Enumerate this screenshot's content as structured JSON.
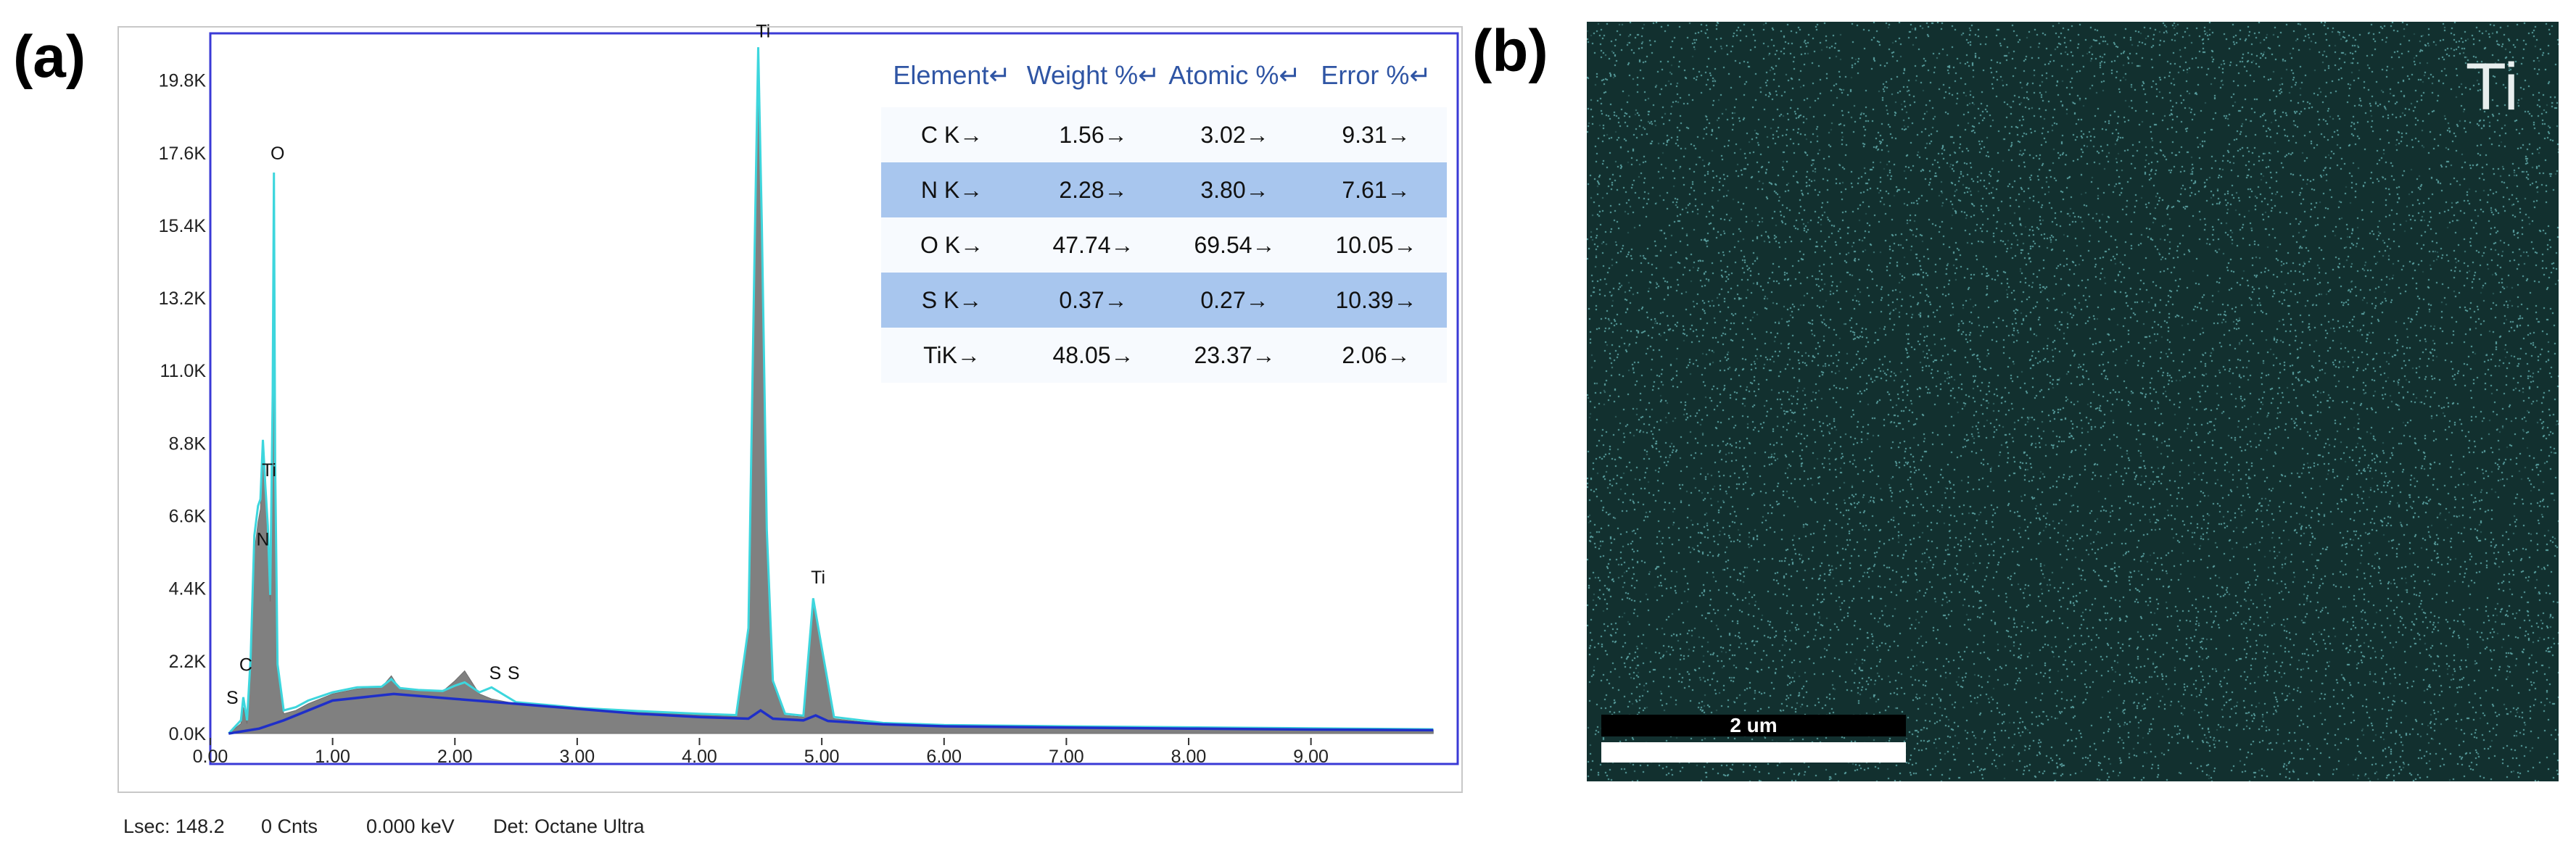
{
  "panels": {
    "a": "(a)",
    "b": "(b)"
  },
  "chart_data": {
    "type": "line",
    "title": "",
    "xlabel": "",
    "ylabel": "",
    "xlim": [
      0,
      10.2
    ],
    "ylim": [
      0,
      21000
    ],
    "x_ticks": [
      "0.00",
      "1.00",
      "2.00",
      "3.00",
      "4.00",
      "5.00",
      "6.00",
      "7.00",
      "8.00",
      "9.00"
    ],
    "x_tick_values": [
      0,
      1,
      2,
      3,
      4,
      5,
      6,
      7,
      8,
      9
    ],
    "y_ticks": [
      "0.0K",
      "2.2K",
      "4.4K",
      "6.6K",
      "8.8K",
      "11.0K",
      "13.2K",
      "15.4K",
      "17.6K",
      "19.8K"
    ],
    "y_tick_values": [
      0,
      2200,
      4400,
      6600,
      8800,
      11000,
      13200,
      15400,
      17600,
      19800
    ],
    "series": [
      {
        "color": "#808080",
        "x": [
          0.15,
          0.25,
          0.27,
          0.3,
          0.33,
          0.36,
          0.39,
          0.41,
          0.43,
          0.45,
          0.47,
          0.49,
          0.51,
          0.52,
          0.53,
          0.55,
          0.6,
          0.7,
          0.8,
          1.0,
          1.2,
          1.4,
          1.48,
          1.55,
          1.7,
          1.9,
          2.0,
          2.08,
          2.2,
          2.3,
          2.5,
          2.8,
          3.0,
          3.5,
          4.0,
          4.3,
          4.4,
          4.45,
          4.48,
          4.51,
          4.55,
          4.6,
          4.7,
          4.85,
          4.93,
          5.0,
          5.1,
          5.5,
          6.0,
          7.0,
          8.0,
          9.0,
          10.0
        ],
        "y": [
          0,
          300,
          800,
          300,
          2000,
          5500,
          6400,
          6800,
          8600,
          7200,
          6000,
          4000,
          10000,
          17000,
          8000,
          2000,
          600,
          700,
          900,
          1200,
          1350,
          1400,
          1750,
          1350,
          1300,
          1280,
          1600,
          1900,
          1200,
          1050,
          900,
          800,
          750,
          650,
          560,
          520,
          3000,
          14000,
          20500,
          15000,
          6000,
          1500,
          550,
          500,
          4000,
          2500,
          450,
          280,
          220,
          190,
          160,
          130,
          110
        ]
      },
      {
        "color": "#3dd6dd",
        "x": [
          0.15,
          0.25,
          0.27,
          0.3,
          0.33,
          0.36,
          0.39,
          0.41,
          0.43,
          0.45,
          0.47,
          0.49,
          0.51,
          0.52,
          0.53,
          0.55,
          0.6,
          0.7,
          0.8,
          1.0,
          1.2,
          1.4,
          1.48,
          1.55,
          1.7,
          1.9,
          2.0,
          2.08,
          2.2,
          2.3,
          2.5,
          2.8,
          3.0,
          3.5,
          4.0,
          4.3,
          4.4,
          4.45,
          4.48,
          4.51,
          4.55,
          4.6,
          4.7,
          4.85,
          4.93,
          5.0,
          5.1,
          5.5,
          6.0,
          7.0,
          8.0,
          9.0,
          10.0
        ],
        "y": [
          0,
          400,
          1100,
          400,
          2300,
          6000,
          6900,
          7100,
          8900,
          7500,
          6300,
          4200,
          10300,
          17000,
          8200,
          2100,
          700,
          800,
          1000,
          1250,
          1400,
          1420,
          1650,
          1380,
          1320,
          1290,
          1450,
          1550,
          1250,
          1400,
          950,
          850,
          780,
          680,
          600,
          560,
          3200,
          14500,
          20800,
          15400,
          6200,
          1600,
          600,
          540,
          4100,
          2600,
          500,
          320,
          260,
          220,
          190,
          160,
          130
        ]
      },
      {
        "color": "#1f2fc8",
        "x": [
          0.15,
          0.4,
          0.6,
          1.0,
          1.5,
          2.0,
          2.5,
          3.0,
          3.5,
          4.0,
          4.4,
          4.5,
          4.6,
          4.85,
          4.95,
          5.05,
          5.5,
          6.0,
          7.0,
          8.0,
          9.0,
          10.0
        ],
        "y": [
          0,
          150,
          400,
          1000,
          1200,
          1050,
          900,
          750,
          600,
          500,
          450,
          700,
          450,
          400,
          550,
          380,
          280,
          220,
          180,
          150,
          120,
          100
        ]
      }
    ],
    "peak_labels": [
      {
        "text": "S",
        "x": 0.18,
        "y": 900
      },
      {
        "text": "C",
        "x": 0.29,
        "y": 1900
      },
      {
        "text": "O",
        "x": 0.55,
        "y": 17400
      },
      {
        "text": "Ti",
        "x": 0.48,
        "y": 7800
      },
      {
        "text": "N",
        "x": 0.43,
        "y": 5700
      },
      {
        "text": "Ti",
        "x": 4.52,
        "y": 21100
      },
      {
        "text": "Ti",
        "x": 4.97,
        "y": 4550
      },
      {
        "text": "S",
        "x": 2.33,
        "y": 1650
      },
      {
        "text": "S",
        "x": 2.48,
        "y": 1650
      }
    ],
    "table": {
      "columns": [
        "Element↵",
        "Weight %↵",
        "Atomic %↵",
        "Error %↵"
      ],
      "rows": [
        [
          "C K→",
          "1.56→",
          "3.02→",
          "9.31→"
        ],
        [
          "N K→",
          "2.28→",
          "3.80→",
          "7.61→"
        ],
        [
          "O K→",
          "47.74→",
          "69.54→",
          "10.05→"
        ],
        [
          "S K→",
          "0.37→",
          "0.27→",
          "10.39→"
        ],
        [
          "TiK→",
          "48.05→",
          "23.37→",
          "2.06→"
        ]
      ]
    }
  },
  "status": {
    "lsec": "Lsec: 148.2",
    "cnts": "0 Cnts",
    "kev": "0.000 keV",
    "det": "Det: Octane Ultra"
  },
  "map": {
    "element": "Ti",
    "scale_label": "2 um",
    "background_color": "#12302f",
    "dot_color": "#5fa8a8"
  }
}
